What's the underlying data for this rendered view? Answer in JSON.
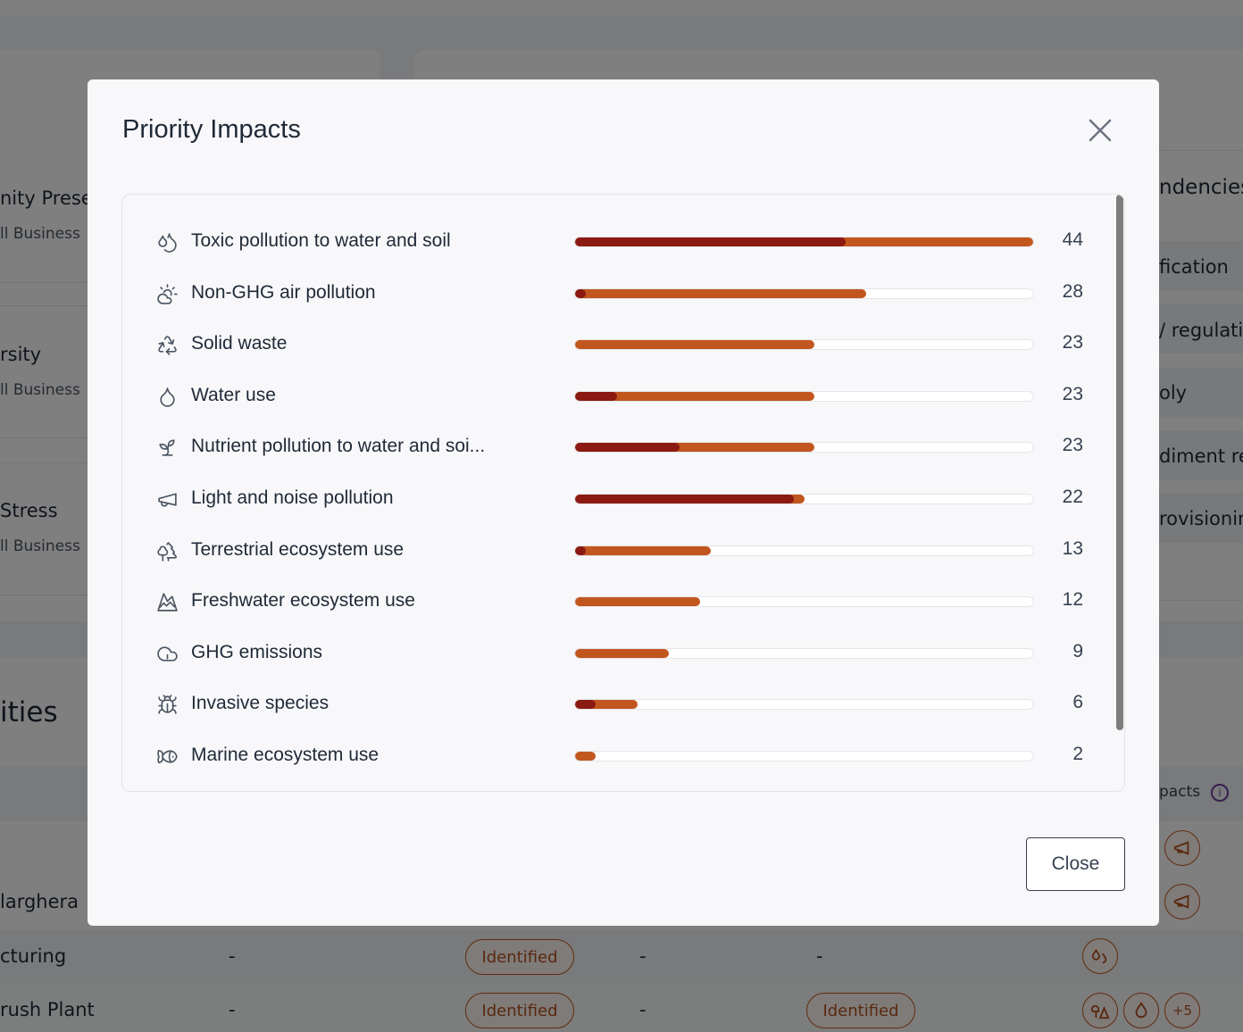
{
  "background": {
    "left_cards": [
      {
        "title": "nity Prese",
        "subtitle": "ll Business"
      },
      {
        "title": "rsity",
        "subtitle": "ll Business"
      },
      {
        "title": "Stress",
        "subtitle": "ll Business"
      }
    ],
    "right_panel": {
      "title": "ndencies",
      "items": [
        "fication",
        "/ regulatio",
        "oly",
        "diment re",
        "rovisioning"
      ]
    },
    "section_title": "ities",
    "impacts_header": "pacts",
    "table_rows": [
      {
        "name": "larghera",
        "col1": "",
        "col2": "",
        "col3": "",
        "col4": ""
      },
      {
        "name": "cturing",
        "col1": "-",
        "col2": "Identified",
        "col3": "-",
        "col4": "-",
        "extra": ""
      },
      {
        "name": "rush Plant",
        "col1": "-",
        "col2": "Identified",
        "col3": "-",
        "col4": "Identified",
        "extra": "+5"
      }
    ]
  },
  "modal": {
    "title": "Priority Impacts",
    "close_button_label": "Close",
    "colors": {
      "primary": "#c2561f",
      "dark": "#8b1a12"
    },
    "max_value": 44,
    "items": [
      {
        "label": "Toxic pollution to water and soil",
        "value": 44,
        "dark_value": 26,
        "icon": "droplets-icon"
      },
      {
        "label": "Non-GHG air pollution",
        "value": 28,
        "dark_value": 1,
        "icon": "cloud-sun-icon"
      },
      {
        "label": "Solid waste",
        "value": 23,
        "dark_value": 0,
        "icon": "recycle-icon"
      },
      {
        "label": "Water use",
        "value": 23,
        "dark_value": 4,
        "icon": "droplet-icon"
      },
      {
        "label": "Nutrient pollution to water and soi...",
        "value": 23,
        "dark_value": 10,
        "icon": "sprout-icon"
      },
      {
        "label": "Light and noise pollution",
        "value": 22,
        "dark_value": 21,
        "icon": "megaphone-icon"
      },
      {
        "label": "Terrestrial ecosystem use",
        "value": 13,
        "dark_value": 1,
        "icon": "trees-icon"
      },
      {
        "label": "Freshwater ecosystem use",
        "value": 12,
        "dark_value": 0,
        "icon": "mountain-icon"
      },
      {
        "label": "GHG emissions",
        "value": 9,
        "dark_value": 0,
        "icon": "cloud-icon"
      },
      {
        "label": "Invasive species",
        "value": 6,
        "dark_value": 2,
        "icon": "bug-icon"
      },
      {
        "label": "Marine ecosystem use",
        "value": 2,
        "dark_value": 0,
        "icon": "fish-icon"
      }
    ]
  }
}
